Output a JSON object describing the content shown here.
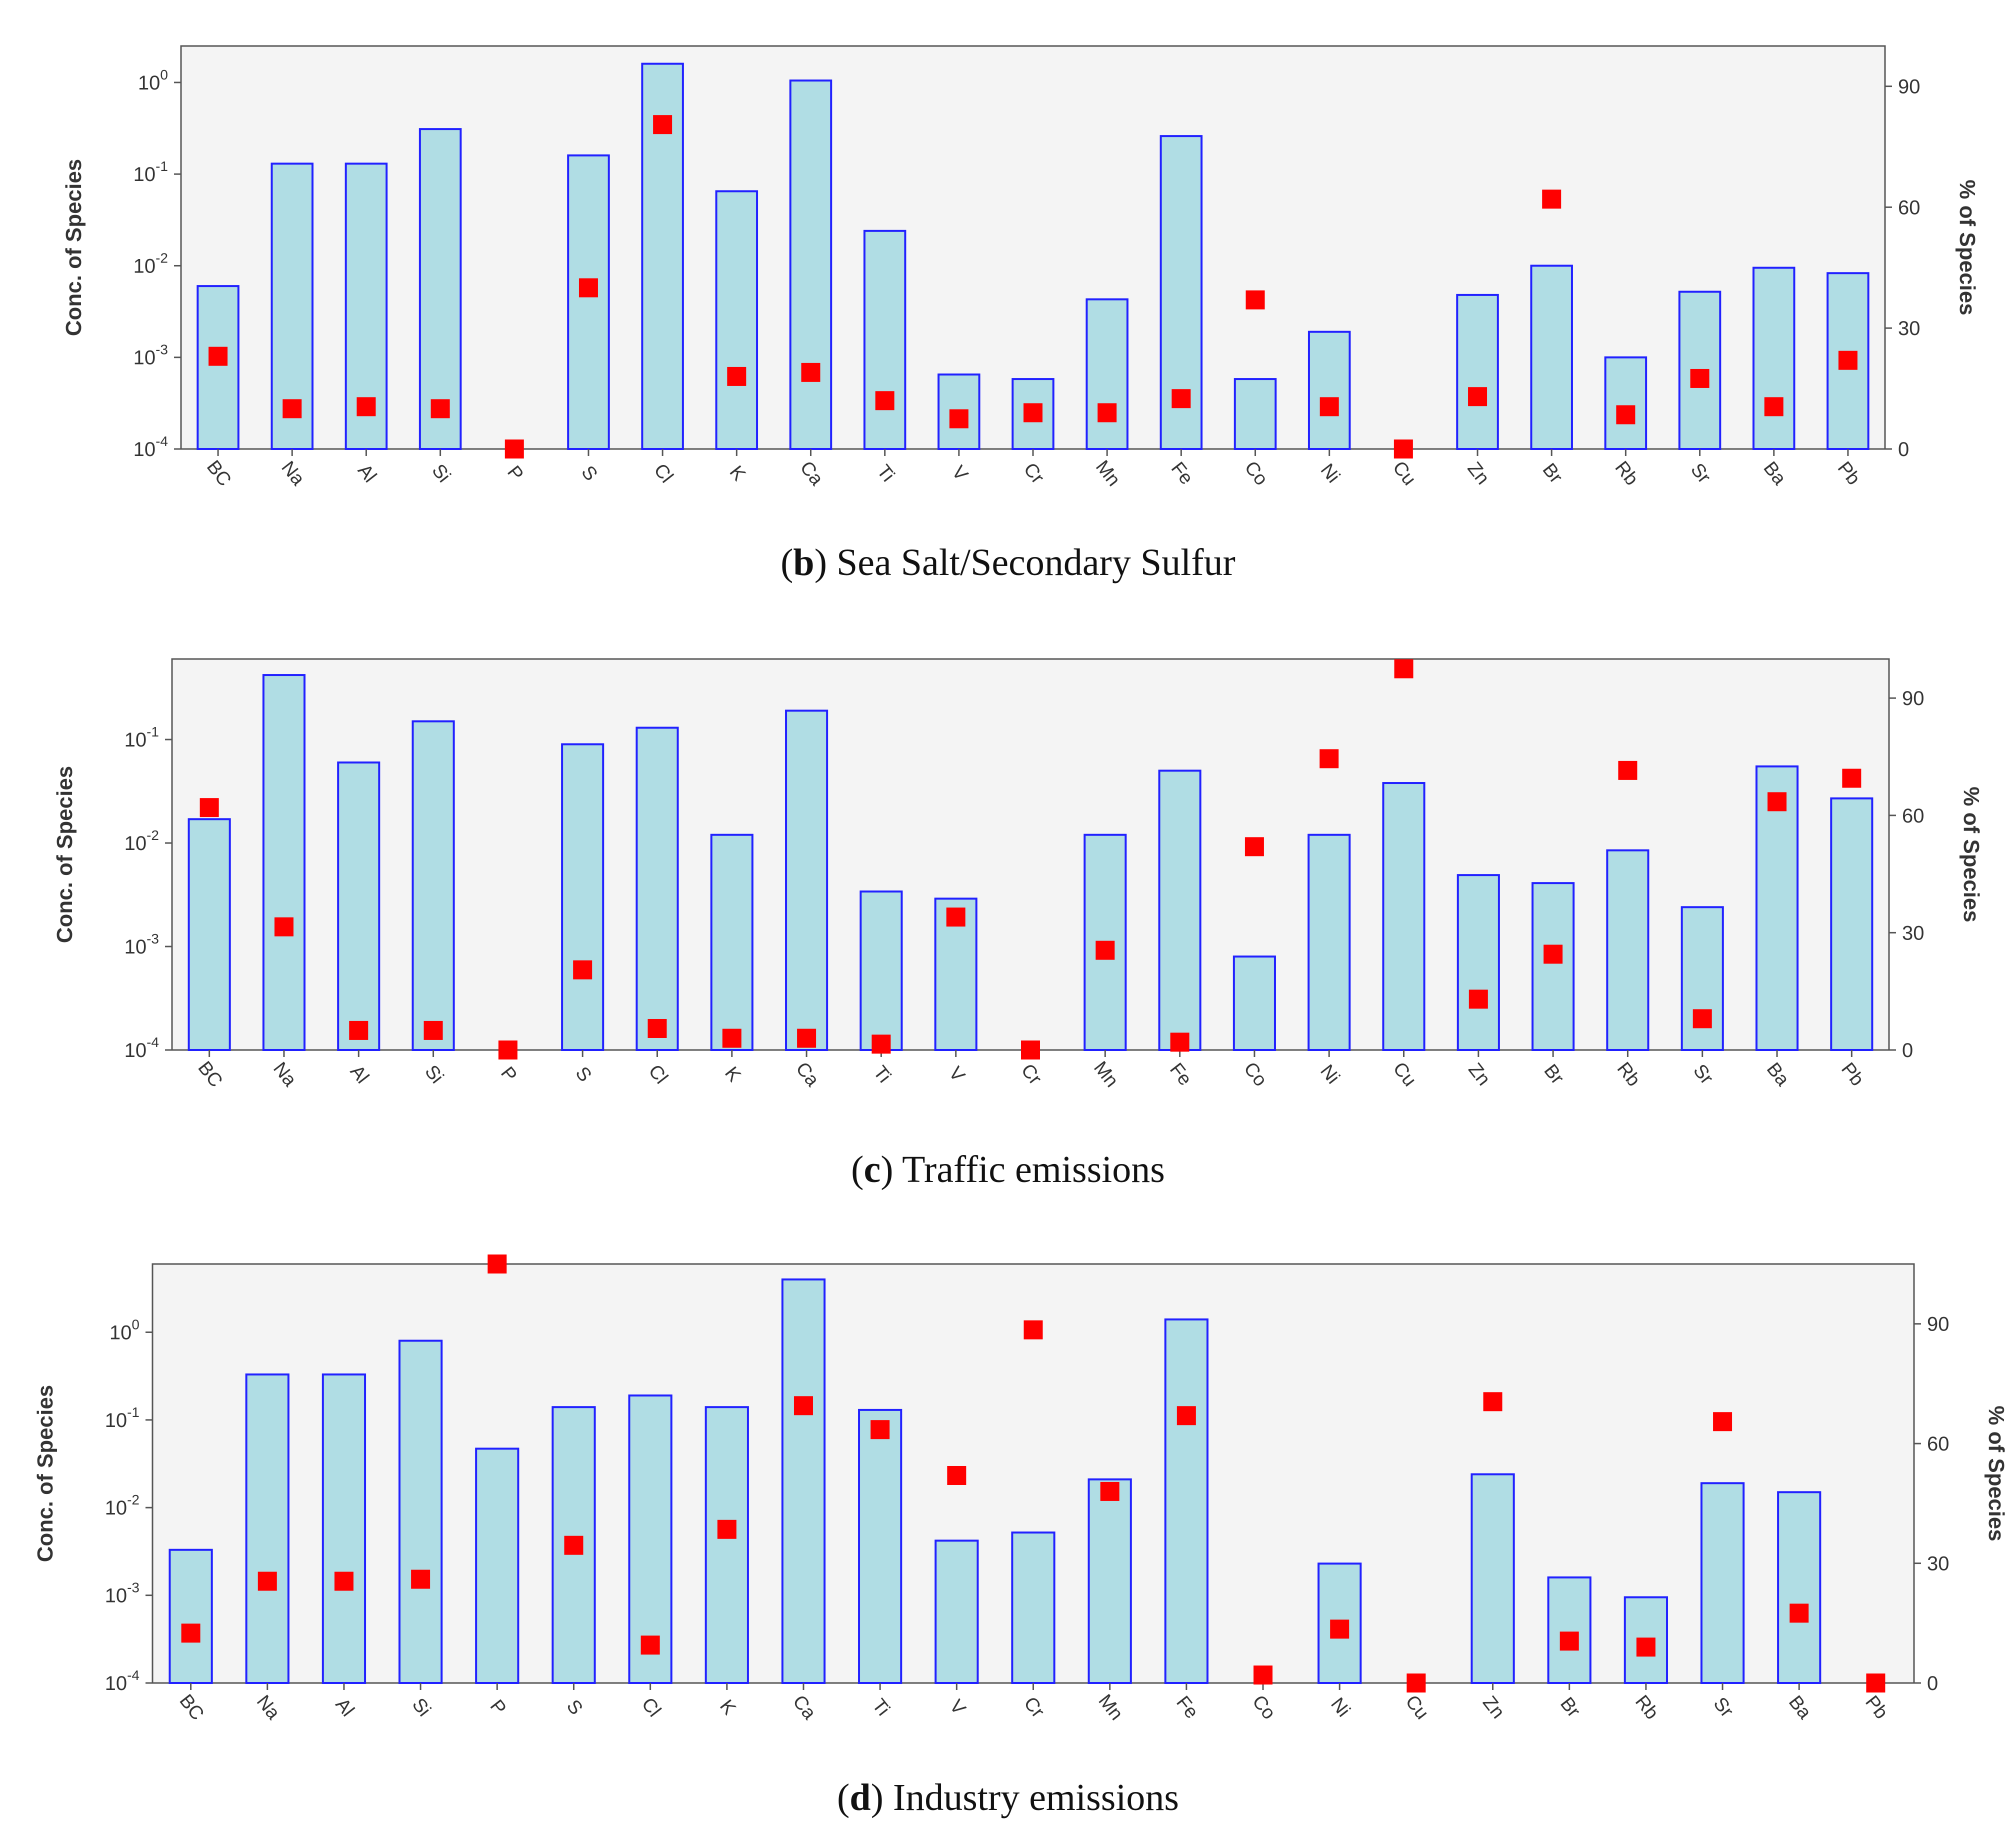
{
  "colors": {
    "plot_background": "#f4f4f4",
    "bar_fill": "#b0dde4",
    "bar_stroke": "#2121ff",
    "marker": "#ff0000",
    "axis": "#555555"
  },
  "chart_data": [
    {
      "type": "bar",
      "caption": {
        "letter": "b",
        "text": "Sea Salt/Secondary Sulfur"
      },
      "categories": [
        "BC",
        "Na",
        "Al",
        "Si",
        "P",
        "S",
        "Cl",
        "K",
        "Ca",
        "Ti",
        "V",
        "Cr",
        "Mn",
        "Fe",
        "Co",
        "Ni",
        "Cu",
        "Zn",
        "Br",
        "Rb",
        "Sr",
        "Ba",
        "Pb"
      ],
      "ylabel": "Conc. of Species",
      "y2label": "% of Species",
      "yscale": "log",
      "ylim": [
        0.0001,
        2.5
      ],
      "y2lim": [
        0,
        100
      ],
      "ytick_exponents": [
        -4,
        -3,
        -2,
        -1,
        0
      ],
      "y2ticks": [
        "0",
        "30",
        "60",
        "90"
      ],
      "series": [
        {
          "name": "",
          "kind": "bar",
          "axis": "left",
          "values": [
            0.006,
            0.13,
            0.13,
            0.31,
            0.0001,
            0.16,
            1.6,
            0.065,
            1.05,
            0.024,
            0.00065,
            0.00058,
            0.0043,
            0.26,
            0.00058,
            0.0019,
            0.0001,
            0.0048,
            0.01,
            0.001,
            0.0052,
            0.0095,
            0.0083
          ]
        },
        {
          "name": "",
          "kind": "marker",
          "axis": "right",
          "values": [
            23,
            10,
            10.5,
            10,
            0,
            40,
            80.5,
            18,
            19,
            12,
            7.5,
            9,
            9,
            12.5,
            37,
            10.5,
            0,
            13,
            62,
            8.5,
            17.5,
            10.5,
            22
          ]
        }
      ],
      "grid": false
    },
    {
      "type": "bar",
      "caption": {
        "letter": "c",
        "text": "Traffic emissions"
      },
      "categories": [
        "BC",
        "Na",
        "Al",
        "Si",
        "P",
        "S",
        "Cl",
        "K",
        "Ca",
        "Ti",
        "V",
        "Cr",
        "Mn",
        "Fe",
        "Co",
        "Ni",
        "Cu",
        "Zn",
        "Br",
        "Rb",
        "Sr",
        "Ba",
        "Pb"
      ],
      "ylabel": "Conc. of Species",
      "y2label": "% of Species",
      "yscale": "log",
      "ylim": [
        0.0001,
        0.6
      ],
      "y2lim": [
        0,
        100
      ],
      "ytick_exponents": [
        -4,
        -3,
        -2,
        -1
      ],
      "y2ticks": [
        "0",
        "30",
        "60",
        "90"
      ],
      "series": [
        {
          "name": "",
          "kind": "bar",
          "axis": "left",
          "values": [
            0.017,
            0.42,
            0.06,
            0.15,
            0.0001,
            0.09,
            0.13,
            0.012,
            0.19,
            0.0034,
            0.0029,
            0.0001,
            0.012,
            0.05,
            0.0008,
            0.012,
            0.038,
            0.0049,
            0.0041,
            0.0085,
            0.0024,
            0.055,
            0.027
          ]
        },
        {
          "name": "",
          "kind": "marker",
          "axis": "right",
          "values": [
            62,
            31.5,
            5,
            5,
            0,
            20.5,
            5.5,
            3,
            3,
            1.5,
            34,
            0,
            25.5,
            2,
            52,
            74.5,
            97.5,
            13,
            24.5,
            71.5,
            8,
            63.5,
            69.5
          ]
        }
      ],
      "grid": false
    },
    {
      "type": "bar",
      "caption": {
        "letter": "d",
        "text": "Industry emissions"
      },
      "categories": [
        "BC",
        "Na",
        "Al",
        "Si",
        "P",
        "S",
        "Cl",
        "K",
        "Ca",
        "Ti",
        "V",
        "Cr",
        "Mn",
        "Fe",
        "Co",
        "Ni",
        "Cu",
        "Zn",
        "Br",
        "Rb",
        "Sr",
        "Ba",
        "Pb"
      ],
      "ylabel": "Conc. of Species",
      "y2label": "% of Species",
      "yscale": "log",
      "ylim": [
        0.0001,
        6
      ],
      "y2lim": [
        0,
        105
      ],
      "ytick_exponents": [
        -4,
        -3,
        -2,
        -1,
        0
      ],
      "y2ticks": [
        "0",
        "30",
        "60",
        "90"
      ],
      "series": [
        {
          "name": "",
          "kind": "bar",
          "axis": "left",
          "values": [
            0.0033,
            0.33,
            0.33,
            0.8,
            0.047,
            0.14,
            0.19,
            0.14,
            4.0,
            0.13,
            0.0042,
            0.0052,
            0.021,
            1.4,
            0.0001,
            0.0023,
            0.0001,
            0.024,
            0.0016,
            0.00095,
            0.019,
            0.015,
            0.0001
          ]
        },
        {
          "name": "",
          "kind": "marker",
          "axis": "right",
          "values": [
            12.5,
            25.5,
            25.5,
            26,
            105,
            34.5,
            9.5,
            38.5,
            69.5,
            63.5,
            52,
            88.5,
            48,
            67,
            2,
            13.5,
            0,
            70.5,
            10.5,
            9,
            65.5,
            17.5,
            0
          ]
        }
      ],
      "grid": false
    }
  ]
}
